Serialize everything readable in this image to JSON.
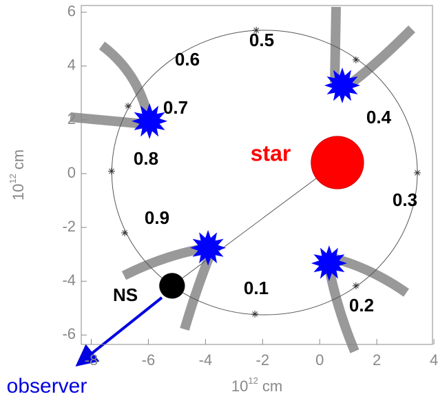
{
  "chart_data": {
    "type": "orbit",
    "xlim": [
      -8.35,
      3.95
    ],
    "ylim": [
      -6.35,
      6.25
    ],
    "xticks": [
      -8,
      -6,
      -4,
      -2,
      0,
      2,
      4
    ],
    "yticks": [
      -6,
      -4,
      -2,
      0,
      2,
      4,
      6
    ],
    "x_label": {
      "base": "10",
      "exponent": "12",
      "unit": "cm"
    },
    "y_label": {
      "base": "10",
      "exponent": "12",
      "unit": "cm"
    },
    "orbit": {
      "cx": -1.93,
      "cy": 0.04,
      "rx": 5.35,
      "ry": 5.29
    },
    "orbit_points": {
      "x": [
        -2.22,
        1.27,
        3.42,
        1.27,
        -2.27,
        -6.83,
        -7.29,
        -6.71
      ],
      "y": [
        5.33,
        4.23,
        0.03,
        -4.17,
        -5.22,
        -2.2,
        0.09,
        2.51
      ]
    },
    "phase_labels": [
      "0.5",
      "0.6",
      "0.7",
      "0.4",
      "0.8",
      "0.3",
      "0.9",
      "0.1",
      "0.2"
    ],
    "star": {
      "label": "star",
      "x": 0.62,
      "y": 0.41,
      "r": 0.92,
      "color": "#ff0000"
    },
    "neutron_star": {
      "label": "NS",
      "x": -5.17,
      "y": -4.17,
      "r": 0.45,
      "color": "#000000"
    },
    "bursts": {
      "x": [
        0.79,
        -5.96,
        -3.91,
        0.33
      ],
      "y": [
        3.28,
        1.95,
        -2.76,
        -3.33
      ],
      "color": "#0000ff"
    },
    "observer_label": "observer"
  }
}
